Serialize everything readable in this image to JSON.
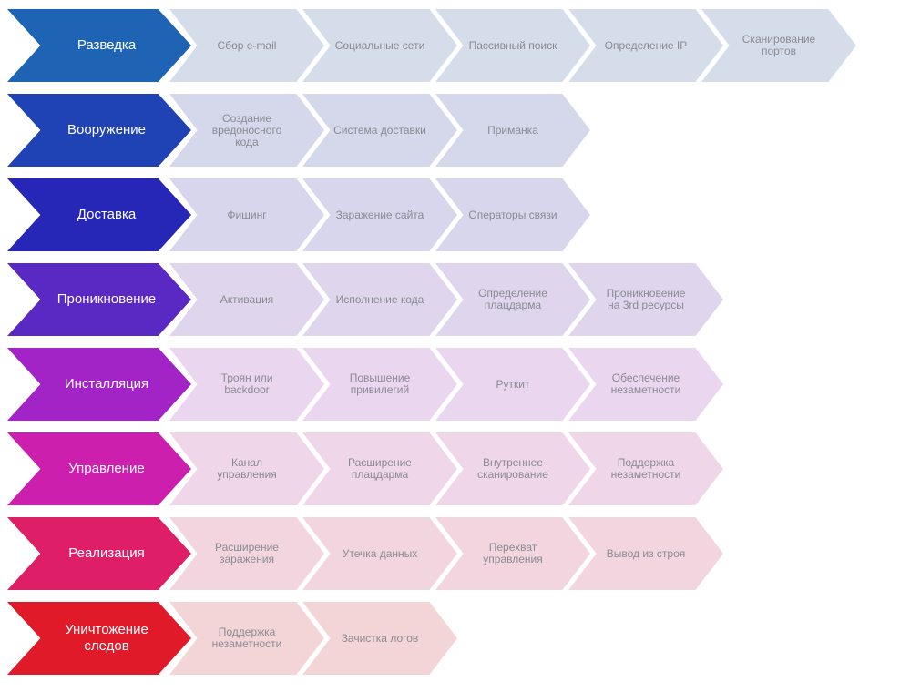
{
  "stages": [
    {
      "label": "Разведка",
      "color": "#1f63b4",
      "tint": "#d4dde9",
      "steps": [
        "Сбор e-mail",
        "Социальные сети",
        "Пассивный поиск",
        "Определение IP",
        "Сканирование портов"
      ]
    },
    {
      "label": "Вооружение",
      "color": "#1f43b5",
      "tint": "#d4d8ea",
      "steps": [
        "Создание вредоносного кода",
        "Система доставки",
        "Приманка"
      ]
    },
    {
      "label": "Доставка",
      "color": "#2727b7",
      "tint": "#d7d6ec",
      "steps": [
        "Фишинг",
        "Заражение сайта",
        "Операторы связи"
      ]
    },
    {
      "label": "Проникновение",
      "color": "#5a28c2",
      "tint": "#dfd6ee",
      "steps": [
        "Активация",
        "Исполнение кода",
        "Определение плацдарма",
        "Проникновение на 3rd ресурсы"
      ]
    },
    {
      "label": "Инсталляция",
      "color": "#a224c6",
      "tint": "#ead6ef",
      "steps": [
        "Троян или backdoor",
        "Повышение привилегий",
        "Руткит",
        "Обеспечение незаметности"
      ]
    },
    {
      "label": "Управление",
      "color": "#cd1fad",
      "tint": "#f0d6e9",
      "steps": [
        "Канал управления",
        "Расширение плацдарма",
        "Внутреннее сканирование",
        "Поддержка незаметности"
      ]
    },
    {
      "label": "Реализация",
      "color": "#de1f67",
      "tint": "#f2d5df",
      "steps": [
        "Расширение заражения",
        "Утечка данных",
        "Перехват управления",
        "Вывод из строя"
      ]
    },
    {
      "label": "Уничтожение следов",
      "color": "#e11a2a",
      "tint": "#f3d5d8",
      "steps": [
        "Поддержка незаметности",
        "Зачистка логов"
      ]
    }
  ]
}
